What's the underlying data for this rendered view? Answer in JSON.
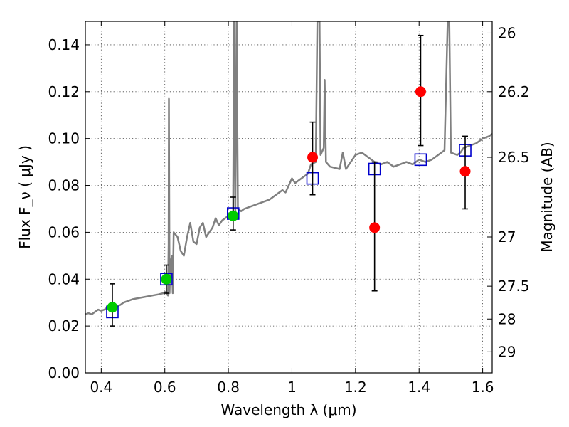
{
  "chart_data": {
    "type": "scatter",
    "xlabel": "Wavelength  λ (μm)",
    "ylabel": "Flux  F_ν  ( μJy )",
    "y2label": "Magnitude (AB)",
    "xlim": [
      0.35,
      1.63
    ],
    "ylim": [
      0.0,
      0.15
    ],
    "grid": true,
    "x_ticks": [
      0.4,
      0.6,
      0.8,
      1.0,
      1.2,
      1.4,
      1.6
    ],
    "x_tick_labels": [
      "0.4",
      "0.6",
      "0.8",
      "1",
      "1.2",
      "1.4",
      "1.6"
    ],
    "y_ticks": [
      0.0,
      0.02,
      0.04,
      0.06,
      0.08,
      0.1,
      0.12,
      0.14
    ],
    "y_tick_labels": [
      "0.00",
      "0.02",
      "0.04",
      "0.06",
      "0.08",
      "0.10",
      "0.12",
      "0.14"
    ],
    "y2_ticks": [
      {
        "label": "26",
        "flux": 0.145
      },
      {
        "label": "26.2",
        "flux": 0.12
      },
      {
        "label": "26.5",
        "flux": 0.092
      },
      {
        "label": "27",
        "flux": 0.058
      },
      {
        "label": "27.5",
        "flux": 0.037
      },
      {
        "label": "28",
        "flux": 0.023
      },
      {
        "label": "29",
        "flux": 0.009
      }
    ],
    "series": [
      {
        "kind": "line",
        "color": "#808080",
        "points": [
          [
            0.35,
            0.025
          ],
          [
            0.36,
            0.0255
          ],
          [
            0.37,
            0.025
          ],
          [
            0.38,
            0.026
          ],
          [
            0.39,
            0.027
          ],
          [
            0.4,
            0.0265
          ],
          [
            0.41,
            0.027
          ],
          [
            0.42,
            0.028
          ],
          [
            0.43,
            0.029
          ],
          [
            0.44,
            0.028
          ],
          [
            0.45,
            0.0285
          ],
          [
            0.46,
            0.029
          ],
          [
            0.47,
            0.03
          ],
          [
            0.48,
            0.0305
          ],
          [
            0.5,
            0.0315
          ],
          [
            0.52,
            0.032
          ],
          [
            0.54,
            0.0325
          ],
          [
            0.56,
            0.033
          ],
          [
            0.58,
            0.0335
          ],
          [
            0.595,
            0.034
          ],
          [
            0.602,
            0.0345
          ],
          [
            0.61,
            0.033
          ],
          [
            0.612,
            0.055
          ],
          [
            0.613,
            0.117
          ],
          [
            0.615,
            0.034
          ],
          [
            0.617,
            0.046
          ],
          [
            0.622,
            0.05
          ],
          [
            0.625,
            0.034
          ],
          [
            0.628,
            0.06
          ],
          [
            0.64,
            0.058
          ],
          [
            0.65,
            0.052
          ],
          [
            0.66,
            0.05
          ],
          [
            0.67,
            0.058
          ],
          [
            0.68,
            0.064
          ],
          [
            0.69,
            0.056
          ],
          [
            0.7,
            0.055
          ],
          [
            0.71,
            0.062
          ],
          [
            0.72,
            0.064
          ],
          [
            0.73,
            0.058
          ],
          [
            0.74,
            0.06
          ],
          [
            0.75,
            0.062
          ],
          [
            0.76,
            0.066
          ],
          [
            0.77,
            0.063
          ],
          [
            0.78,
            0.065
          ],
          [
            0.79,
            0.066
          ],
          [
            0.8,
            0.067
          ],
          [
            0.81,
            0.068
          ],
          [
            0.815,
            0.069
          ],
          [
            0.818,
            0.15
          ],
          [
            0.822,
            0.069
          ],
          [
            0.826,
            0.15
          ],
          [
            0.83,
            0.07
          ],
          [
            0.84,
            0.069
          ],
          [
            0.85,
            0.07
          ],
          [
            0.87,
            0.071
          ],
          [
            0.89,
            0.072
          ],
          [
            0.91,
            0.073
          ],
          [
            0.93,
            0.074
          ],
          [
            0.95,
            0.076
          ],
          [
            0.97,
            0.078
          ],
          [
            0.98,
            0.077
          ],
          [
            0.99,
            0.08
          ],
          [
            1.0,
            0.083
          ],
          [
            1.01,
            0.081
          ],
          [
            1.02,
            0.082
          ],
          [
            1.04,
            0.084
          ],
          [
            1.05,
            0.085
          ],
          [
            1.06,
            0.089
          ],
          [
            1.075,
            0.09
          ],
          [
            1.08,
            0.15
          ],
          [
            1.087,
            0.15
          ],
          [
            1.09,
            0.093
          ],
          [
            1.1,
            0.096
          ],
          [
            1.103,
            0.125
          ],
          [
            1.107,
            0.09
          ],
          [
            1.12,
            0.088
          ],
          [
            1.15,
            0.087
          ],
          [
            1.16,
            0.094
          ],
          [
            1.17,
            0.087
          ],
          [
            1.18,
            0.089
          ],
          [
            1.19,
            0.091
          ],
          [
            1.2,
            0.093
          ],
          [
            1.22,
            0.094
          ],
          [
            1.24,
            0.092
          ],
          [
            1.26,
            0.09
          ],
          [
            1.28,
            0.089
          ],
          [
            1.3,
            0.09
          ],
          [
            1.32,
            0.088
          ],
          [
            1.34,
            0.089
          ],
          [
            1.36,
            0.09
          ],
          [
            1.38,
            0.089
          ],
          [
            1.4,
            0.091
          ],
          [
            1.42,
            0.09
          ],
          [
            1.44,
            0.091
          ],
          [
            1.46,
            0.093
          ],
          [
            1.48,
            0.095
          ],
          [
            1.49,
            0.15
          ],
          [
            1.495,
            0.15
          ],
          [
            1.5,
            0.094
          ],
          [
            1.52,
            0.093
          ],
          [
            1.53,
            0.094
          ],
          [
            1.54,
            0.096
          ],
          [
            1.56,
            0.097
          ],
          [
            1.58,
            0.098
          ],
          [
            1.6,
            0.1
          ],
          [
            1.62,
            0.101
          ],
          [
            1.63,
            0.102
          ]
        ]
      },
      {
        "kind": "square",
        "color": "#0000cc",
        "points": [
          [
            0.435,
            0.026
          ],
          [
            0.605,
            0.04
          ],
          [
            0.815,
            0.068
          ],
          [
            1.065,
            0.083
          ],
          [
            1.26,
            0.087
          ],
          [
            1.405,
            0.091
          ],
          [
            1.545,
            0.095
          ]
        ]
      },
      {
        "kind": "circle",
        "color": "#00cc00",
        "points": [
          [
            0.435,
            0.028
          ],
          [
            0.605,
            0.04
          ],
          [
            0.815,
            0.067
          ]
        ],
        "yerr": [
          [
            0.02,
            0.038
          ],
          [
            0.034,
            0.046
          ],
          [
            0.061,
            0.075
          ]
        ]
      },
      {
        "kind": "circle",
        "color": "#ff0000",
        "points": [
          [
            1.065,
            0.092
          ],
          [
            1.26,
            0.062
          ],
          [
            1.405,
            0.12
          ],
          [
            1.545,
            0.086
          ]
        ],
        "yerr": [
          [
            0.076,
            0.107
          ],
          [
            0.035,
            0.09
          ],
          [
            0.097,
            0.144
          ],
          [
            0.07,
            0.101
          ]
        ]
      }
    ]
  }
}
